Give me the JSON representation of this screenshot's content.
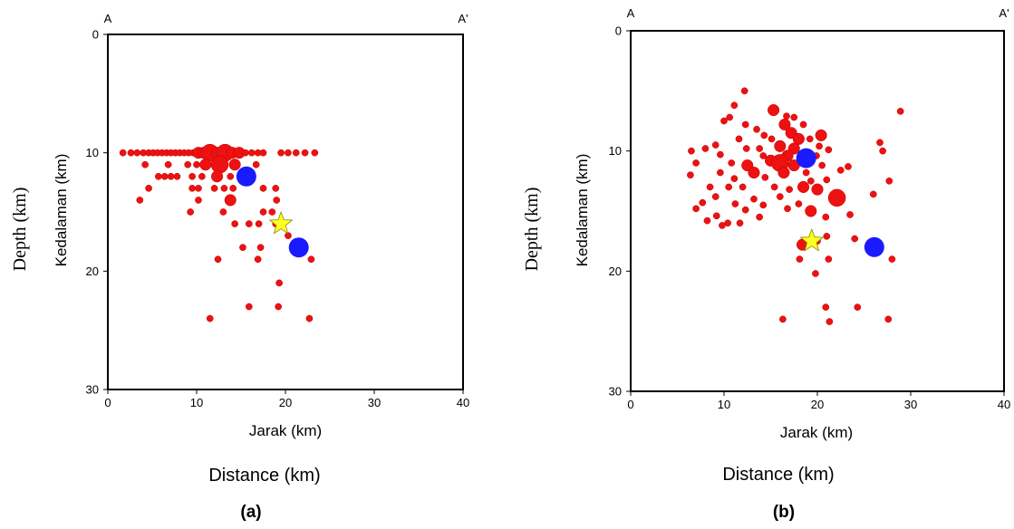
{
  "chart_data": [
    {
      "type": "scatter",
      "panel_label": "(a)",
      "section_start": "A",
      "section_end": "A'",
      "xlabel": "Jarak (km)",
      "ylabel": "Kedalaman (km)",
      "outer_xlabel": "Distance (km)",
      "outer_ylabel": "Depth (km)",
      "xlim": [
        0,
        40
      ],
      "ylim": [
        30,
        0
      ],
      "xticks": [
        "0",
        "10",
        "20",
        "30",
        "40"
      ],
      "yticks": [
        "0",
        "10",
        "20",
        "30"
      ],
      "colors": {
        "event": "#ee1111",
        "station": "#1a1aff",
        "epicenter": "#ffff22"
      },
      "events": [
        {
          "x": 1.7,
          "y": 10,
          "s": 1
        },
        {
          "x": 2.6,
          "y": 10,
          "s": 1
        },
        {
          "x": 3.3,
          "y": 10,
          "s": 1
        },
        {
          "x": 4.0,
          "y": 10,
          "s": 1
        },
        {
          "x": 4.6,
          "y": 10,
          "s": 1
        },
        {
          "x": 5.1,
          "y": 10,
          "s": 1
        },
        {
          "x": 5.6,
          "y": 10,
          "s": 1
        },
        {
          "x": 6.1,
          "y": 10,
          "s": 1
        },
        {
          "x": 6.6,
          "y": 10,
          "s": 1
        },
        {
          "x": 7.1,
          "y": 10,
          "s": 1
        },
        {
          "x": 7.6,
          "y": 10,
          "s": 1
        },
        {
          "x": 8.1,
          "y": 10,
          "s": 1
        },
        {
          "x": 8.6,
          "y": 10,
          "s": 1
        },
        {
          "x": 9.1,
          "y": 10,
          "s": 1
        },
        {
          "x": 9.6,
          "y": 10,
          "s": 1
        },
        {
          "x": 10.2,
          "y": 10,
          "s": 2
        },
        {
          "x": 10.8,
          "y": 10,
          "s": 2
        },
        {
          "x": 11.5,
          "y": 10,
          "s": 3
        },
        {
          "x": 12.3,
          "y": 10,
          "s": 2
        },
        {
          "x": 13.2,
          "y": 10,
          "s": 3
        },
        {
          "x": 14.0,
          "y": 10,
          "s": 2
        },
        {
          "x": 14.8,
          "y": 10,
          "s": 2
        },
        {
          "x": 15.5,
          "y": 10,
          "s": 1
        },
        {
          "x": 16.2,
          "y": 10,
          "s": 1
        },
        {
          "x": 16.9,
          "y": 10,
          "s": 1
        },
        {
          "x": 17.5,
          "y": 10,
          "s": 1
        },
        {
          "x": 19.5,
          "y": 10,
          "s": 1
        },
        {
          "x": 20.3,
          "y": 10,
          "s": 1
        },
        {
          "x": 21.2,
          "y": 10,
          "s": 1
        },
        {
          "x": 22.2,
          "y": 10,
          "s": 1
        },
        {
          "x": 23.3,
          "y": 10,
          "s": 1
        },
        {
          "x": 4.2,
          "y": 11,
          "s": 1
        },
        {
          "x": 6.8,
          "y": 11,
          "s": 1
        },
        {
          "x": 9.0,
          "y": 11,
          "s": 1
        },
        {
          "x": 10.0,
          "y": 11,
          "s": 1
        },
        {
          "x": 11.0,
          "y": 11,
          "s": 2
        },
        {
          "x": 12.6,
          "y": 11,
          "s": 3
        },
        {
          "x": 14.3,
          "y": 11,
          "s": 2
        },
        {
          "x": 16.7,
          "y": 11,
          "s": 1
        },
        {
          "x": 5.7,
          "y": 12,
          "s": 1
        },
        {
          "x": 6.4,
          "y": 12,
          "s": 1
        },
        {
          "x": 7.1,
          "y": 12,
          "s": 1
        },
        {
          "x": 7.8,
          "y": 12,
          "s": 1
        },
        {
          "x": 9.5,
          "y": 12,
          "s": 1
        },
        {
          "x": 10.6,
          "y": 12,
          "s": 1
        },
        {
          "x": 12.3,
          "y": 12,
          "s": 2
        },
        {
          "x": 13.8,
          "y": 12,
          "s": 1
        },
        {
          "x": 4.6,
          "y": 13,
          "s": 1
        },
        {
          "x": 9.5,
          "y": 13,
          "s": 1
        },
        {
          "x": 10.2,
          "y": 13,
          "s": 1
        },
        {
          "x": 12.0,
          "y": 13,
          "s": 1
        },
        {
          "x": 13.1,
          "y": 13,
          "s": 1
        },
        {
          "x": 14.1,
          "y": 13,
          "s": 1
        },
        {
          "x": 17.5,
          "y": 13,
          "s": 1
        },
        {
          "x": 18.9,
          "y": 13,
          "s": 1
        },
        {
          "x": 3.6,
          "y": 14,
          "s": 1
        },
        {
          "x": 10.2,
          "y": 14,
          "s": 1
        },
        {
          "x": 13.8,
          "y": 14,
          "s": 2
        },
        {
          "x": 19.0,
          "y": 14,
          "s": 1
        },
        {
          "x": 9.3,
          "y": 15,
          "s": 1
        },
        {
          "x": 13.0,
          "y": 15,
          "s": 1
        },
        {
          "x": 17.5,
          "y": 15,
          "s": 1
        },
        {
          "x": 18.5,
          "y": 15,
          "s": 1
        },
        {
          "x": 14.3,
          "y": 16,
          "s": 1
        },
        {
          "x": 15.9,
          "y": 16,
          "s": 1
        },
        {
          "x": 17.0,
          "y": 16,
          "s": 1
        },
        {
          "x": 18.9,
          "y": 16,
          "s": 1
        },
        {
          "x": 20.3,
          "y": 17,
          "s": 1
        },
        {
          "x": 15.2,
          "y": 18,
          "s": 1
        },
        {
          "x": 17.2,
          "y": 18,
          "s": 1
        },
        {
          "x": 12.4,
          "y": 19,
          "s": 1
        },
        {
          "x": 16.9,
          "y": 19,
          "s": 1
        },
        {
          "x": 22.9,
          "y": 19,
          "s": 1
        },
        {
          "x": 19.3,
          "y": 21,
          "s": 1
        },
        {
          "x": 15.9,
          "y": 23,
          "s": 1
        },
        {
          "x": 19.2,
          "y": 23,
          "s": 1
        },
        {
          "x": 11.5,
          "y": 24,
          "s": 1
        },
        {
          "x": 22.7,
          "y": 24,
          "s": 1
        }
      ],
      "stations": [
        {
          "x": 15.6,
          "y": 12
        },
        {
          "x": 21.5,
          "y": 18
        }
      ],
      "epicenter": {
        "x": 19.5,
        "y": 16
      }
    },
    {
      "type": "scatter",
      "panel_label": "(b)",
      "section_start": "A",
      "section_end": "A'",
      "xlabel": "Jarak (km)",
      "ylabel": "Kedalaman (km)",
      "outer_xlabel": "Distance (km)",
      "outer_ylabel": "Depth (km)",
      "xlim": [
        0,
        40
      ],
      "ylim": [
        30,
        0
      ],
      "xticks": [
        "0",
        "10",
        "20",
        "30",
        "40"
      ],
      "yticks": [
        "0",
        "10",
        "20",
        "30"
      ],
      "colors": {
        "event": "#ee1111",
        "station": "#1a1aff",
        "epicenter": "#ffff22"
      },
      "events": [
        {
          "x": 12.2,
          "y": 5,
          "s": 1
        },
        {
          "x": 15.3,
          "y": 6.6,
          "s": 2
        },
        {
          "x": 11.1,
          "y": 6.2,
          "s": 1
        },
        {
          "x": 16.7,
          "y": 7.1,
          "s": 1
        },
        {
          "x": 17.5,
          "y": 7.2,
          "s": 1
        },
        {
          "x": 28.9,
          "y": 6.7,
          "s": 1
        },
        {
          "x": 10.6,
          "y": 7.2,
          "s": 1
        },
        {
          "x": 10.0,
          "y": 7.5,
          "s": 1
        },
        {
          "x": 12.3,
          "y": 7.8,
          "s": 1
        },
        {
          "x": 16.5,
          "y": 7.8,
          "s": 2
        },
        {
          "x": 18.5,
          "y": 7.8,
          "s": 1
        },
        {
          "x": 13.5,
          "y": 8.2,
          "s": 1
        },
        {
          "x": 14.3,
          "y": 8.7,
          "s": 1
        },
        {
          "x": 17.2,
          "y": 8.5,
          "s": 2
        },
        {
          "x": 20.4,
          "y": 8.7,
          "s": 2
        },
        {
          "x": 11.6,
          "y": 9.0,
          "s": 1
        },
        {
          "x": 15.1,
          "y": 9.0,
          "s": 1
        },
        {
          "x": 18.0,
          "y": 9.0,
          "s": 2
        },
        {
          "x": 19.2,
          "y": 9.0,
          "s": 1
        },
        {
          "x": 26.7,
          "y": 9.3,
          "s": 1
        },
        {
          "x": 9.1,
          "y": 9.5,
          "s": 1
        },
        {
          "x": 16.0,
          "y": 9.6,
          "s": 2
        },
        {
          "x": 20.2,
          "y": 9.6,
          "s": 1
        },
        {
          "x": 8.0,
          "y": 9.8,
          "s": 1
        },
        {
          "x": 12.4,
          "y": 9.8,
          "s": 1
        },
        {
          "x": 13.8,
          "y": 9.8,
          "s": 1
        },
        {
          "x": 17.5,
          "y": 9.8,
          "s": 2
        },
        {
          "x": 21.2,
          "y": 9.9,
          "s": 1
        },
        {
          "x": 27.0,
          "y": 10.0,
          "s": 1
        },
        {
          "x": 6.5,
          "y": 10.0,
          "s": 1
        },
        {
          "x": 9.6,
          "y": 10.3,
          "s": 1
        },
        {
          "x": 14.2,
          "y": 10.4,
          "s": 1
        },
        {
          "x": 16.8,
          "y": 10.4,
          "s": 2
        },
        {
          "x": 19.9,
          "y": 10.4,
          "s": 1
        },
        {
          "x": 15.0,
          "y": 10.8,
          "s": 2
        },
        {
          "x": 16.0,
          "y": 11.0,
          "s": 3
        },
        {
          "x": 17.5,
          "y": 11.2,
          "s": 2
        },
        {
          "x": 10.8,
          "y": 11.0,
          "s": 1
        },
        {
          "x": 7.0,
          "y": 11.0,
          "s": 1
        },
        {
          "x": 12.5,
          "y": 11.2,
          "s": 2
        },
        {
          "x": 20.5,
          "y": 11.2,
          "s": 1
        },
        {
          "x": 23.3,
          "y": 11.3,
          "s": 1
        },
        {
          "x": 9.6,
          "y": 11.8,
          "s": 1
        },
        {
          "x": 13.2,
          "y": 11.8,
          "s": 2
        },
        {
          "x": 16.4,
          "y": 11.8,
          "s": 2
        },
        {
          "x": 18.8,
          "y": 11.8,
          "s": 1
        },
        {
          "x": 22.5,
          "y": 11.6,
          "s": 1
        },
        {
          "x": 6.4,
          "y": 12.0,
          "s": 1
        },
        {
          "x": 11.1,
          "y": 12.3,
          "s": 1
        },
        {
          "x": 14.4,
          "y": 12.2,
          "s": 1
        },
        {
          "x": 19.3,
          "y": 12.5,
          "s": 1
        },
        {
          "x": 21.0,
          "y": 12.4,
          "s": 1
        },
        {
          "x": 27.7,
          "y": 12.5,
          "s": 1
        },
        {
          "x": 8.5,
          "y": 13.0,
          "s": 1
        },
        {
          "x": 10.5,
          "y": 13.0,
          "s": 1
        },
        {
          "x": 12.0,
          "y": 13.0,
          "s": 1
        },
        {
          "x": 15.4,
          "y": 13.0,
          "s": 1
        },
        {
          "x": 17.0,
          "y": 13.2,
          "s": 1
        },
        {
          "x": 18.5,
          "y": 13.0,
          "s": 2
        },
        {
          "x": 20.0,
          "y": 13.2,
          "s": 2
        },
        {
          "x": 26.0,
          "y": 13.6,
          "s": 1
        },
        {
          "x": 9.1,
          "y": 13.8,
          "s": 1
        },
        {
          "x": 13.2,
          "y": 14.0,
          "s": 1
        },
        {
          "x": 16.0,
          "y": 13.8,
          "s": 1
        },
        {
          "x": 22.1,
          "y": 13.9,
          "s": 3
        },
        {
          "x": 7.7,
          "y": 14.3,
          "s": 1
        },
        {
          "x": 11.2,
          "y": 14.4,
          "s": 1
        },
        {
          "x": 14.2,
          "y": 14.5,
          "s": 1
        },
        {
          "x": 18.0,
          "y": 14.4,
          "s": 1
        },
        {
          "x": 7.0,
          "y": 14.8,
          "s": 1
        },
        {
          "x": 12.3,
          "y": 14.9,
          "s": 1
        },
        {
          "x": 16.8,
          "y": 14.8,
          "s": 1
        },
        {
          "x": 19.3,
          "y": 15.0,
          "s": 2
        },
        {
          "x": 23.5,
          "y": 15.3,
          "s": 1
        },
        {
          "x": 9.2,
          "y": 15.4,
          "s": 1
        },
        {
          "x": 13.8,
          "y": 15.5,
          "s": 1
        },
        {
          "x": 20.9,
          "y": 15.5,
          "s": 1
        },
        {
          "x": 8.2,
          "y": 15.8,
          "s": 1
        },
        {
          "x": 10.4,
          "y": 16.0,
          "s": 1
        },
        {
          "x": 11.7,
          "y": 16.0,
          "s": 1
        },
        {
          "x": 9.8,
          "y": 16.2,
          "s": 1
        },
        {
          "x": 18.4,
          "y": 17.8,
          "s": 2
        },
        {
          "x": 20.0,
          "y": 17.5,
          "s": 1
        },
        {
          "x": 21.0,
          "y": 17.1,
          "s": 1
        },
        {
          "x": 24.0,
          "y": 17.3,
          "s": 1
        },
        {
          "x": 18.1,
          "y": 19.0,
          "s": 1
        },
        {
          "x": 21.2,
          "y": 19.0,
          "s": 1
        },
        {
          "x": 28.0,
          "y": 19.0,
          "s": 1
        },
        {
          "x": 19.8,
          "y": 20.2,
          "s": 1
        },
        {
          "x": 20.9,
          "y": 23.0,
          "s": 1
        },
        {
          "x": 24.3,
          "y": 23.0,
          "s": 1
        },
        {
          "x": 16.3,
          "y": 24.0,
          "s": 1
        },
        {
          "x": 21.3,
          "y": 24.2,
          "s": 1
        },
        {
          "x": 27.6,
          "y": 24.0,
          "s": 1
        }
      ],
      "stations": [
        {
          "x": 18.8,
          "y": 10.6
        },
        {
          "x": 26.1,
          "y": 18.0
        }
      ],
      "epicenter": {
        "x": 19.4,
        "y": 17.5
      }
    }
  ]
}
